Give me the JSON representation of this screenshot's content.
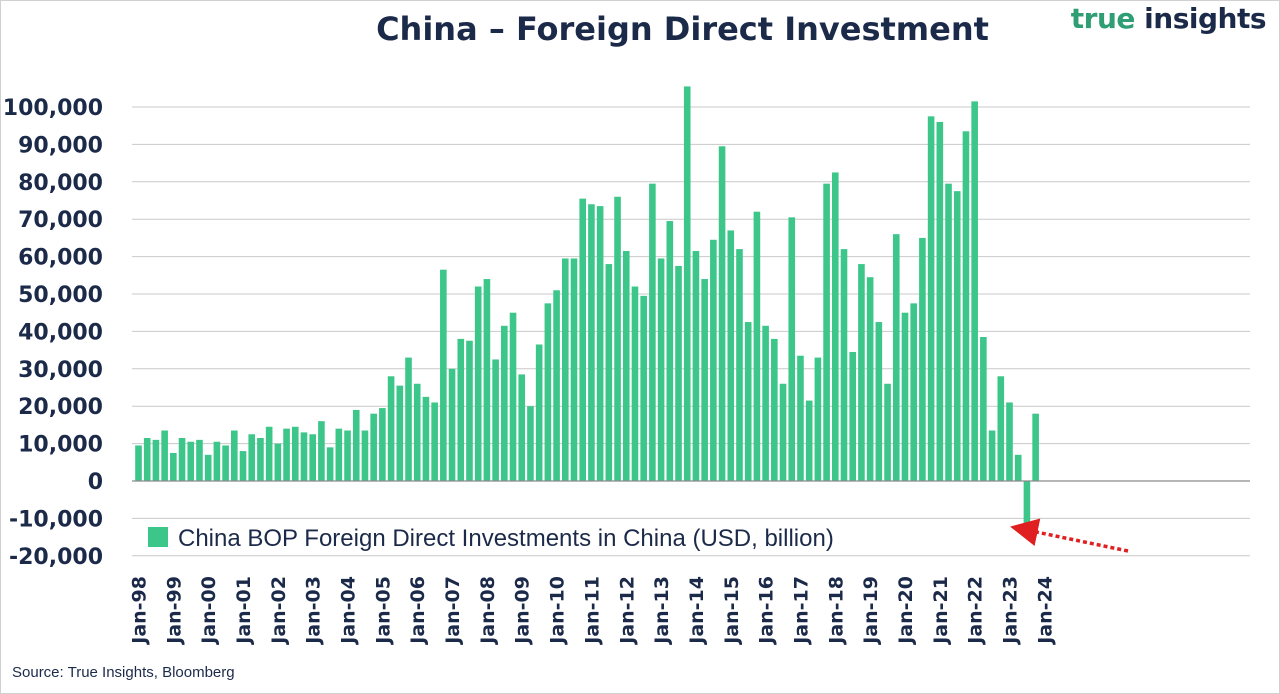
{
  "header": {
    "title": "China – Foreign Direct Investment",
    "logo_word1": "true",
    "logo_word2": "insights"
  },
  "footer": {
    "source": "Source: True Insights, Bloomberg"
  },
  "colors": {
    "bar": "#3cc68a",
    "text": "#1c2a4a",
    "grid": "#c9c9c9",
    "arrow": "#e02020",
    "logo_green": "#2f9e74"
  },
  "chart_data": {
    "type": "bar",
    "title": "China – Foreign Direct Investment",
    "xlabel": "",
    "ylabel": "",
    "ylim": [
      -20000,
      110000
    ],
    "yticks": [
      -20000,
      -10000,
      0,
      10000,
      20000,
      30000,
      40000,
      50000,
      60000,
      70000,
      80000,
      90000,
      100000
    ],
    "ytick_labels": [
      "-20,000",
      "-10,000",
      "0",
      "10,000",
      "20,000",
      "30,000",
      "40,000",
      "50,000",
      "60,000",
      "70,000",
      "80,000",
      "90,000",
      "100,000"
    ],
    "xtick_labels": [
      "Jan-98",
      "Jan-99",
      "Jan-00",
      "Jan-01",
      "Jan-02",
      "Jan-03",
      "Jan-04",
      "Jan-05",
      "Jan-06",
      "Jan-07",
      "Jan-08",
      "Jan-09",
      "Jan-10",
      "Jan-11",
      "Jan-12",
      "Jan-13",
      "Jan-14",
      "Jan-15",
      "Jan-16",
      "Jan-17",
      "Jan-18",
      "Jan-19",
      "Jan-20",
      "Jan-21",
      "Jan-22",
      "Jan-23",
      "Jan-24"
    ],
    "grid": true,
    "frequency": "quarterly",
    "start": "Q1 1998",
    "legend": {
      "position": "bottom-left",
      "entries": [
        "China BOP Foreign Direct Investments in China (USD, billion)"
      ]
    },
    "series": [
      {
        "name": "China BOP Foreign Direct Investments in China (USD, billion)",
        "values": [
          9500,
          11500,
          11000,
          13500,
          7500,
          11500,
          10500,
          11000,
          7000,
          10500,
          9500,
          13500,
          8000,
          12500,
          11500,
          14500,
          10000,
          14000,
          14500,
          13000,
          12500,
          16000,
          9000,
          14000,
          13500,
          19000,
          13500,
          18000,
          19500,
          28000,
          25500,
          33000,
          26000,
          22500,
          21000,
          56500,
          30000,
          38000,
          37500,
          52000,
          54000,
          32500,
          41500,
          45000,
          28500,
          20000,
          36500,
          47500,
          51000,
          59500,
          59500,
          75500,
          74000,
          73500,
          58000,
          76000,
          61500,
          52000,
          49500,
          79500,
          59500,
          69500,
          57500,
          105500,
          61500,
          54000,
          64500,
          89500,
          67000,
          62000,
          42500,
          72000,
          41500,
          38000,
          26000,
          70500,
          33500,
          21500,
          33000,
          79500,
          82500,
          62000,
          34500,
          58000,
          54500,
          42500,
          26000,
          66000,
          45000,
          47500,
          65000,
          97500,
          96000,
          79500,
          77500,
          93500,
          101500,
          38500,
          13500,
          28000,
          21000,
          7000,
          -11800,
          18000
        ]
      }
    ],
    "annotations": [
      {
        "type": "arrow",
        "points_to": "Q3 2023 (negative value)"
      }
    ]
  }
}
